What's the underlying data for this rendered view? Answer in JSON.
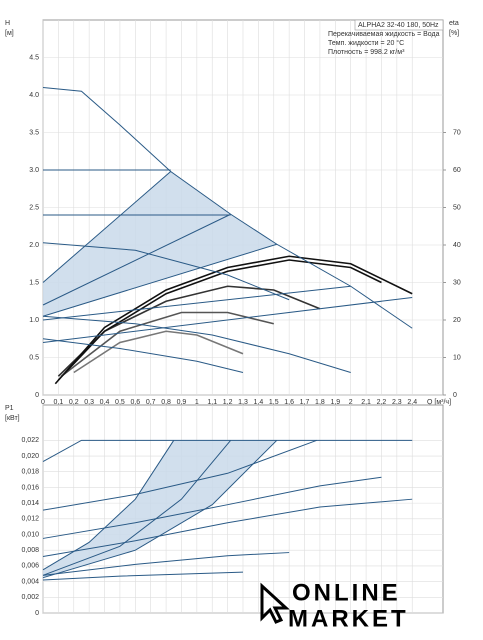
{
  "chart_data": [
    {
      "type": "line",
      "ylabel": [
        "H",
        "[м]"
      ],
      "y2label": [
        "eta",
        "[%]"
      ],
      "xlabel": "Q [м³/ч]",
      "info": [
        "ALPHA2 32-40 180, 50Hz",
        "Перекачиваемая жидкость = Вода",
        "Темп. жидкости = 20 °C",
        "Плотность = 998.2 кг/м³"
      ],
      "xlim": [
        0,
        2.6
      ],
      "ylim": [
        0,
        5
      ],
      "y2lim": [
        0,
        100
      ],
      "grid": true,
      "xticks": [
        0,
        {
          "value": 0.1,
          "label": "0,1"
        },
        {
          "value": 0.2,
          "label": "0,2"
        },
        {
          "value": 0.3,
          "label": "0,3"
        },
        {
          "value": 0.4,
          "label": "0,4"
        },
        {
          "value": 0.5,
          "label": "0,5"
        },
        {
          "value": 0.6,
          "label": "0,6"
        },
        {
          "value": 0.7,
          "label": "0,7"
        },
        {
          "value": 0.8,
          "label": "0,8"
        },
        {
          "value": 0.9,
          "label": "0,9"
        },
        1,
        {
          "value": 1.1,
          "label": "1,1"
        },
        {
          "value": 1.2,
          "label": "1,2"
        },
        {
          "value": 1.3,
          "label": "1,3"
        },
        {
          "value": 1.4,
          "label": "1,4"
        },
        {
          "value": 1.5,
          "label": "1,5"
        },
        {
          "value": 1.6,
          "label": "1,6"
        },
        {
          "value": 1.7,
          "label": "1,7"
        },
        {
          "value": 1.8,
          "label": "1,8"
        },
        {
          "value": 1.9,
          "label": "1,9"
        },
        2,
        {
          "value": 2.1,
          "label": "2,1"
        },
        {
          "value": 2.2,
          "label": "2,2"
        },
        {
          "value": 2.3,
          "label": "2,3"
        },
        {
          "value": 2.4,
          "label": "2,4"
        }
      ],
      "yticks": [
        0,
        0.5,
        {
          "value": 1,
          "label": "1.0"
        },
        1.5,
        {
          "value": 2,
          "label": "2.0"
        },
        2.5,
        {
          "value": 3,
          "label": "3.0"
        },
        3.5,
        {
          "value": 4,
          "label": "4.0"
        },
        4.5
      ],
      "y2ticks": [
        0,
        10,
        20,
        30,
        40,
        50,
        60,
        70
      ],
      "areas": [
        {
          "color": "#c9d9ea",
          "x": [
            0,
            0.83,
            1.22,
            1.52,
            0
          ],
          "values": [
            1.5,
            2.98,
            2.41,
            2.01,
            1.05
          ]
        }
      ],
      "series": [
        {
          "color": "#2a5a86",
          "x": [
            0,
            0.25,
            0.5,
            0.83,
            1.22,
            1.52,
            2.0,
            2.4
          ],
          "values": [
            4.1,
            4.05,
            3.6,
            2.98,
            2.41,
            2.01,
            1.45,
            0.89
          ]
        },
        {
          "color": "#2a5a86",
          "x": [
            0,
            0.83
          ],
          "values": [
            3.0,
            3.0
          ]
        },
        {
          "color": "#2a5a86",
          "x": [
            0,
            1.22
          ],
          "values": [
            2.4,
            2.4
          ]
        },
        {
          "color": "#2a5a86",
          "x": [
            0,
            0.83
          ],
          "values": [
            1.5,
            2.98
          ]
        },
        {
          "color": "#2a5a86",
          "x": [
            0,
            1.22
          ],
          "values": [
            1.2,
            2.41
          ]
        },
        {
          "color": "#2a5a86",
          "x": [
            0,
            1.52
          ],
          "values": [
            1.05,
            2.01
          ]
        },
        {
          "color": "#2a5a86",
          "x": [
            0,
            2.0
          ],
          "values": [
            1.0,
            1.45
          ]
        },
        {
          "color": "#2a5a86",
          "x": [
            0,
            2.4
          ],
          "values": [
            0.7,
            1.3
          ]
        },
        {
          "color": "#2a5a86",
          "x": [
            0,
            0.6,
            1.2,
            1.6
          ],
          "values": [
            2.03,
            1.93,
            1.6,
            1.27
          ]
        },
        {
          "color": "#2a5a86",
          "x": [
            0,
            0.6,
            1.1,
            1.6,
            2.0
          ],
          "values": [
            1.05,
            0.95,
            0.8,
            0.55,
            0.3
          ]
        },
        {
          "color": "#2a5a86",
          "x": [
            0,
            0.5,
            1.0,
            1.3
          ],
          "values": [
            0.75,
            0.62,
            0.45,
            0.3
          ]
        },
        {
          "color": "#111111",
          "axis": "y2",
          "x": [
            0.08,
            0.4,
            0.8,
            1.2,
            1.6,
            2.0,
            2.4
          ],
          "values": [
            3,
            18,
            28,
            34,
            37,
            35,
            27
          ]
        },
        {
          "color": "#111111",
          "axis": "y2",
          "x": [
            0.1,
            0.4,
            0.8,
            1.2,
            1.6,
            2.0,
            2.2
          ],
          "values": [
            4,
            17,
            27,
            33,
            36,
            34,
            30
          ]
        },
        {
          "color": "#333333",
          "axis": "y2",
          "x": [
            0.1,
            0.4,
            0.8,
            1.2,
            1.5,
            1.8
          ],
          "values": [
            5,
            17,
            25,
            29,
            28,
            23
          ]
        },
        {
          "color": "#555555",
          "axis": "y2",
          "x": [
            0.12,
            0.5,
            0.9,
            1.2,
            1.5
          ],
          "values": [
            5,
            17,
            22,
            22,
            19
          ]
        },
        {
          "color": "#777777",
          "axis": "y2",
          "x": [
            0.2,
            0.5,
            0.8,
            1.0,
            1.3
          ],
          "values": [
            6,
            14,
            17,
            16,
            11
          ]
        }
      ]
    },
    {
      "type": "line",
      "ylabel": [
        "P1",
        "[кВт]"
      ],
      "xlim": [
        0,
        2.6
      ],
      "ylim": [
        0,
        0.0265
      ],
      "grid": true,
      "yticks": [
        0,
        {
          "value": 0.002,
          "label": "0,002"
        },
        {
          "value": 0.004,
          "label": "0,004"
        },
        {
          "value": 0.006,
          "label": "0,006"
        },
        {
          "value": 0.008,
          "label": "0,008"
        },
        {
          "value": 0.01,
          "label": "0,010"
        },
        {
          "value": 0.012,
          "label": "0,012"
        },
        {
          "value": 0.014,
          "label": "0,014"
        },
        {
          "value": 0.016,
          "label": "0,016"
        },
        {
          "value": 0.018,
          "label": "0,018"
        },
        {
          "value": 0.02,
          "label": "0,020"
        },
        {
          "value": 0.022,
          "label": "0,022"
        }
      ],
      "areas": [
        {
          "color": "#c9d9ea",
          "x": [
            0,
            0.3,
            0.6,
            0.85,
            1.52,
            1.1,
            0.6,
            0
          ],
          "values": [
            0.0055,
            0.009,
            0.0145,
            0.022,
            0.022,
            0.0138,
            0.008,
            0.0045
          ]
        }
      ],
      "series": [
        {
          "color": "#2a5a86",
          "x": [
            0,
            0.25,
            2.4
          ],
          "values": [
            0.0193,
            0.022,
            0.022
          ]
        },
        {
          "color": "#2a5a86",
          "x": [
            0,
            0.6,
            1.2,
            1.78
          ],
          "values": [
            0.0131,
            0.0151,
            0.0178,
            0.022
          ]
        },
        {
          "color": "#2a5a86",
          "x": [
            0,
            0.6,
            1.2,
            1.8,
            2.2
          ],
          "values": [
            0.0095,
            0.0115,
            0.0138,
            0.0162,
            0.0173
          ]
        },
        {
          "color": "#2a5a86",
          "x": [
            0,
            0.6,
            1.2,
            1.8,
            2.4
          ],
          "values": [
            0.0072,
            0.0092,
            0.0115,
            0.0135,
            0.0145
          ]
        },
        {
          "color": "#2a5a86",
          "x": [
            0,
            0.6,
            1.2,
            1.6
          ],
          "values": [
            0.0048,
            0.0062,
            0.0073,
            0.0077
          ]
        },
        {
          "color": "#2a5a86",
          "x": [
            0,
            0.5,
            1.3
          ],
          "values": [
            0.0042,
            0.0047,
            0.0052
          ]
        },
        {
          "color": "#2a5a86",
          "x": [
            0,
            0.3,
            0.6,
            0.85
          ],
          "values": [
            0.0055,
            0.009,
            0.0145,
            0.022
          ]
        },
        {
          "color": "#2a5a86",
          "x": [
            0,
            0.5,
            0.9,
            1.22
          ],
          "values": [
            0.0048,
            0.0085,
            0.0145,
            0.022
          ]
        },
        {
          "color": "#2a5a86",
          "x": [
            0,
            0.6,
            1.1,
            1.52
          ],
          "values": [
            0.0045,
            0.008,
            0.0138,
            0.022
          ]
        }
      ]
    }
  ],
  "watermark": [
    "ONLINE",
    "MARKET"
  ]
}
